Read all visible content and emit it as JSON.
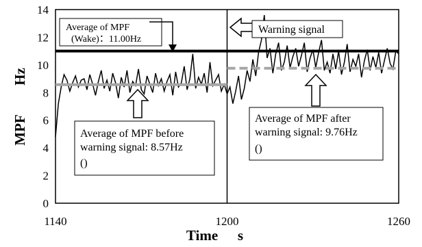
{
  "chart_data": {
    "type": "line",
    "xlabel": "Time",
    "xunit": "s",
    "ylabel": "MPF",
    "yunit": "Hz",
    "xlim": [
      1140,
      1260
    ],
    "ylim": [
      0,
      14
    ],
    "xticks": [
      1140,
      1200,
      1260
    ],
    "yticks": [
      0,
      2,
      4,
      6,
      8,
      10,
      12,
      14
    ],
    "warning_time": 1200,
    "series": [
      {
        "values_x": [
          1140,
          1141,
          1142,
          1143,
          1144,
          1145,
          1146,
          1147,
          1148,
          1149,
          1150,
          1151,
          1152,
          1153,
          1154,
          1155,
          1156,
          1157,
          1158,
          1159,
          1160,
          1161,
          1162,
          1163,
          1164,
          1165,
          1166,
          1167,
          1168,
          1169,
          1170,
          1171,
          1172,
          1173,
          1174,
          1175,
          1176,
          1177,
          1178,
          1179,
          1180,
          1181,
          1182,
          1183,
          1184,
          1185,
          1186,
          1187,
          1188,
          1189,
          1190,
          1191,
          1192,
          1193,
          1194,
          1195,
          1196,
          1197,
          1198,
          1199,
          1200,
          1201,
          1202,
          1203,
          1204,
          1205,
          1206,
          1207,
          1208,
          1209,
          1210,
          1211,
          1212,
          1213,
          1214,
          1215,
          1216,
          1217,
          1218,
          1219,
          1220,
          1221,
          1222,
          1223,
          1224,
          1225,
          1226,
          1227,
          1228,
          1229,
          1230,
          1231,
          1232,
          1233,
          1234,
          1235,
          1236,
          1237,
          1238,
          1239,
          1240,
          1241,
          1242,
          1243,
          1244,
          1245,
          1246,
          1247,
          1248,
          1249,
          1250,
          1251,
          1252,
          1253,
          1254,
          1255,
          1256,
          1257,
          1258,
          1259,
          1260
        ],
        "values_y": [
          4.8,
          7.2,
          8.4,
          9.3,
          8.9,
          8.1,
          8.7,
          9.2,
          8.4,
          8.9,
          9.0,
          8.2,
          9.3,
          8.6,
          7.8,
          8.8,
          9.6,
          8.3,
          8.9,
          8.1,
          9.4,
          8.7,
          7.6,
          9.1,
          8.4,
          9.6,
          8.0,
          8.8,
          8.5,
          9.7,
          8.2,
          7.9,
          9.2,
          8.6,
          8.0,
          9.4,
          8.5,
          9.0,
          8.1,
          8.8,
          9.3,
          7.8,
          9.5,
          8.4,
          8.7,
          9.9,
          8.2,
          9.0,
          10.8,
          8.3,
          9.1,
          8.6,
          9.4,
          8.0,
          10.2,
          8.5,
          8.9,
          9.3,
          8.1,
          8.6,
          7.9,
          8.4,
          7.2,
          8.1,
          9.2,
          7.5,
          8.3,
          9.6,
          8.8,
          10.4,
          9.2,
          10.9,
          11.8,
          13.6,
          10.5,
          11.2,
          9.4,
          10.8,
          11.6,
          9.6,
          10.2,
          11.4,
          9.8,
          10.6,
          11.2,
          9.9,
          10.7,
          11.6,
          9.5,
          10.5,
          11.1,
          9.8,
          10.9,
          11.8,
          9.6,
          10.2,
          9.4,
          10.8,
          9.7,
          11.0,
          9.3,
          10.2,
          11.5,
          9.5,
          10.4,
          9.9,
          10.8,
          9.1,
          10.3,
          11.1,
          9.6,
          10.6,
          9.8,
          10.9,
          9.4,
          10.3,
          11.2,
          10.1,
          9.7,
          11.0,
          10.8
        ]
      }
    ],
    "averages": [
      {
        "label": "Average of MPF (Wake)",
        "value": 11.0,
        "x_from": 1140,
        "x_to": 1260,
        "color": "#000000"
      },
      {
        "label": "Average of MPF before warning signal",
        "value": 8.57,
        "x_from": 1140,
        "x_to": 1200,
        "color": "#a6a6a6"
      },
      {
        "label": "Average of MPF after warning signal",
        "value": 9.76,
        "x_from": 1200,
        "x_to": 1260,
        "color": "#a6a6a6"
      }
    ]
  },
  "labels": {
    "x_title": "Time",
    "x_unit": "s",
    "y_title": "MPF",
    "y_unit": "Hz"
  },
  "annotations": {
    "wake_line1": "Average of MPF",
    "wake_line2": "(Wake)：11.00Hz",
    "warning": "Warning signal",
    "before_line1": "Average of MPF before",
    "before_line2": "warning signal: 8.57Hz",
    "before_line3": "()",
    "after_line1": "Average of MPF after",
    "after_line2": "warning signal: 9.76Hz",
    "after_line3": "()"
  }
}
